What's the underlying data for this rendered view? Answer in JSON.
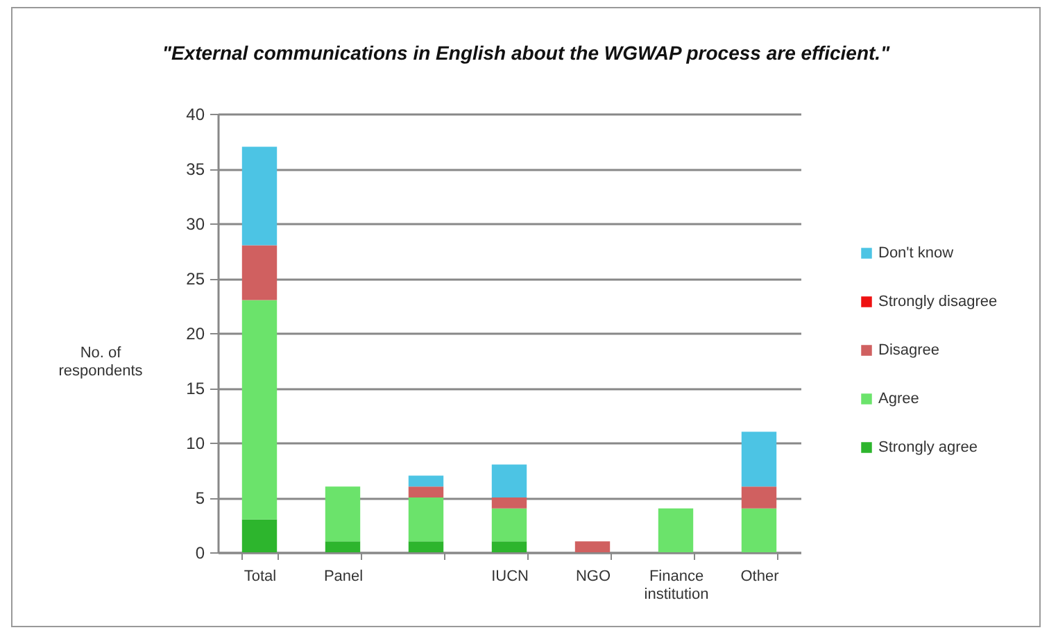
{
  "chart_data": {
    "type": "bar",
    "title": "\"External communications in English about the WGWAP process are efficient.\"",
    "ylabel": "No. of respondents",
    "categories": [
      "Total",
      "Panel",
      null,
      "IUCN",
      "NGO",
      "Finance institution",
      "Other"
    ],
    "stacked": true,
    "series": [
      {
        "name": "Strongly agree",
        "color": "#2db52d",
        "values": [
          3,
          1,
          1,
          1,
          0,
          0,
          0
        ]
      },
      {
        "name": "Agree",
        "color": "#6be36b",
        "values": [
          20,
          5,
          4,
          3,
          0,
          4,
          4
        ]
      },
      {
        "name": "Disagree",
        "color": "#d06060",
        "values": [
          5,
          0,
          1,
          1,
          1,
          0,
          2
        ]
      },
      {
        "name": "Strongly disagree",
        "color": "#ee1111",
        "values": [
          0,
          0,
          0,
          0,
          0,
          0,
          0
        ]
      },
      {
        "name": "Don't know",
        "color": "#4cc4e4",
        "values": [
          9,
          0,
          1,
          3,
          0,
          0,
          5
        ]
      }
    ],
    "ylim": [
      0,
      40
    ],
    "yticks": [
      0,
      5,
      10,
      15,
      20,
      25,
      30,
      35,
      40
    ],
    "grid": "y",
    "legend": "right"
  }
}
